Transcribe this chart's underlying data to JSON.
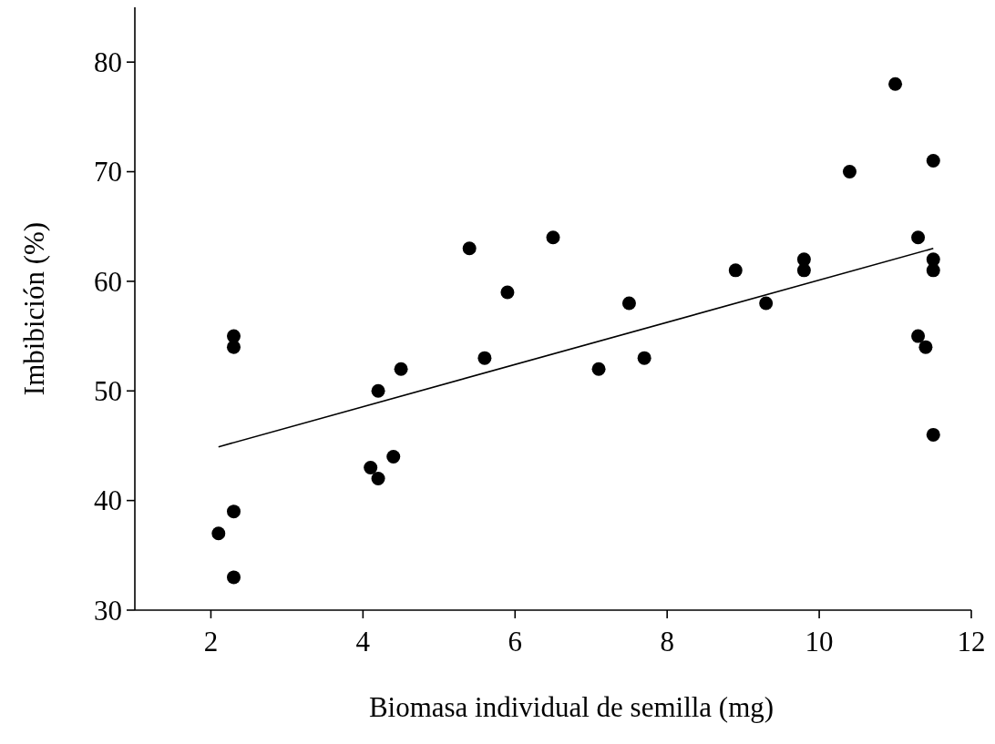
{
  "chart_data": {
    "type": "scatter",
    "xlabel": "Biomasa individual de semilla (mg)",
    "ylabel": "Imbibición (%)",
    "xlim": [
      1,
      12
    ],
    "xticks": [
      2,
      4,
      6,
      8,
      10,
      12
    ],
    "ylim": [
      30,
      85
    ],
    "yticks": [
      30,
      40,
      50,
      60,
      70,
      80
    ],
    "grid": false,
    "marker": "circle",
    "series": [
      {
        "color": "#000000",
        "x": [
          2.1,
          2.3,
          2.3,
          2.3,
          2.3,
          4.1,
          4.2,
          4.2,
          4.4,
          4.5,
          5.4,
          5.6,
          5.9,
          6.5,
          7.1,
          7.5,
          7.7,
          8.9,
          9.3,
          9.8,
          9.8,
          10.4,
          11.0,
          11.3,
          11.3,
          11.4,
          11.5,
          11.5,
          11.5,
          11.5
        ],
        "values": [
          37,
          33,
          39,
          54,
          55,
          43,
          42,
          50,
          44,
          52,
          63,
          53,
          59,
          64,
          52,
          58,
          53,
          61,
          58,
          62,
          61,
          70,
          78,
          64,
          55,
          54,
          46,
          62,
          61,
          71
        ]
      },
      {
        "type": "line",
        "color": "#000000",
        "marker": "none",
        "x": [
          2.1,
          11.5
        ],
        "values": [
          44.9,
          63.0
        ]
      }
    ]
  }
}
